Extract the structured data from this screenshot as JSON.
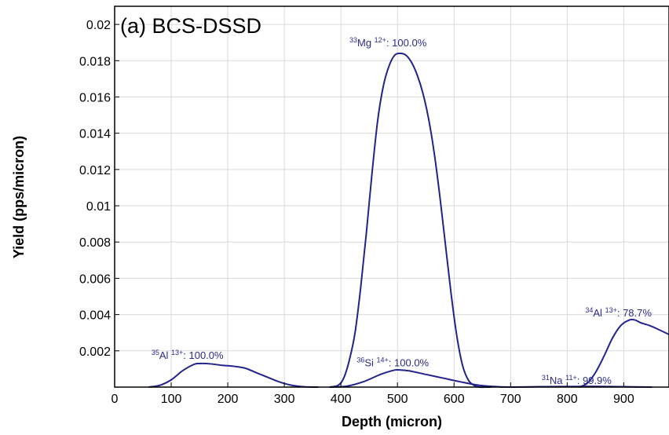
{
  "chart_data": {
    "type": "line",
    "title": "(a) BCS-DSSD",
    "xlabel": "Depth (micron)",
    "ylabel": "Yield (pps/micron)",
    "xlim": [
      0,
      980
    ],
    "ylim": [
      0,
      0.021
    ],
    "xticks": [
      "0",
      "100",
      "200",
      "300",
      "400",
      "500",
      "600",
      "700",
      "800",
      "900"
    ],
    "yticks": [
      "0.002",
      "0.004",
      "0.006",
      "0.008",
      "0.01",
      "0.012",
      "0.014",
      "0.016",
      "0.018",
      "0.02"
    ],
    "grid": true,
    "series": [
      {
        "name": "35Al 13+",
        "color": "#23238c",
        "mass": "35",
        "element": "Al",
        "charge": "13+",
        "percent": ": 100.0%",
        "x": [
          60,
          80,
          100,
          120,
          140,
          150,
          170,
          190,
          210,
          230,
          250,
          270,
          290,
          310,
          330,
          350,
          360
        ],
        "y": [
          0.0,
          0.0001,
          0.0004,
          0.0009,
          0.00125,
          0.0013,
          0.00128,
          0.0012,
          0.00115,
          0.00105,
          0.0008,
          0.00055,
          0.0003,
          0.00012,
          3e-05,
          0.0,
          0.0
        ],
        "ann_x": 65,
        "ann_y": 0.00155
      },
      {
        "name": "33Mg 12+",
        "color": "#23238c",
        "mass": "33",
        "element": "Mg",
        "charge": "12+",
        "percent": ": 100.0%",
        "x": [
          380,
          395,
          405,
          415,
          425,
          435,
          445,
          455,
          465,
          475,
          485,
          495,
          505,
          515,
          525,
          535,
          545,
          555,
          565,
          575,
          585,
          595,
          605,
          615,
          625,
          635,
          645,
          655,
          665
        ],
        "y": [
          0.0,
          0.0001,
          0.0005,
          0.0015,
          0.003,
          0.0055,
          0.0085,
          0.0118,
          0.0147,
          0.0166,
          0.0177,
          0.0183,
          0.0184,
          0.0183,
          0.0179,
          0.0172,
          0.0162,
          0.0148,
          0.0129,
          0.0105,
          0.0078,
          0.0051,
          0.0028,
          0.0012,
          0.0004,
          0.0001,
          0.0,
          0.0,
          0.0
        ],
        "ann_x": 415,
        "ann_y": 0.0188
      },
      {
        "name": "36Si 14+",
        "color": "#23238c",
        "mass": "36",
        "element": "Si",
        "charge": "14+",
        "percent": ": 100.0%",
        "x": [
          380,
          410,
          440,
          470,
          490,
          500,
          520,
          550,
          580,
          610,
          640,
          670,
          700
        ],
        "y": [
          0.0,
          5e-05,
          0.0003,
          0.0007,
          0.0009,
          0.00095,
          0.0009,
          0.0007,
          0.0005,
          0.0003,
          0.00012,
          3e-05,
          0.0
        ],
        "ann_x": 428,
        "ann_y": 0.00115
      },
      {
        "name": "31Na 11+",
        "color": "#23238c",
        "mass": "31",
        "element": "Na",
        "charge": "11+",
        "percent": ": 99.9%",
        "x": [
          700,
          750,
          800,
          850,
          900,
          950
        ],
        "y": [
          0.0,
          2e-05,
          3e-05,
          4e-05,
          2e-05,
          0.0
        ],
        "ann_x": 755,
        "ann_y": 0.00018
      },
      {
        "name": "34Al 13+",
        "color": "#23238c",
        "mass": "34",
        "element": "Al",
        "charge": "13+",
        "percent": ": 78.7%",
        "x": [
          820,
          835,
          850,
          865,
          880,
          895,
          910,
          920,
          930,
          945,
          960,
          980
        ],
        "y": [
          0.0,
          0.0002,
          0.0008,
          0.0017,
          0.0027,
          0.0034,
          0.0037,
          0.0037,
          0.00355,
          0.0034,
          0.0032,
          0.0029
        ],
        "ann_x": 832,
        "ann_y": 0.0039
      }
    ]
  }
}
